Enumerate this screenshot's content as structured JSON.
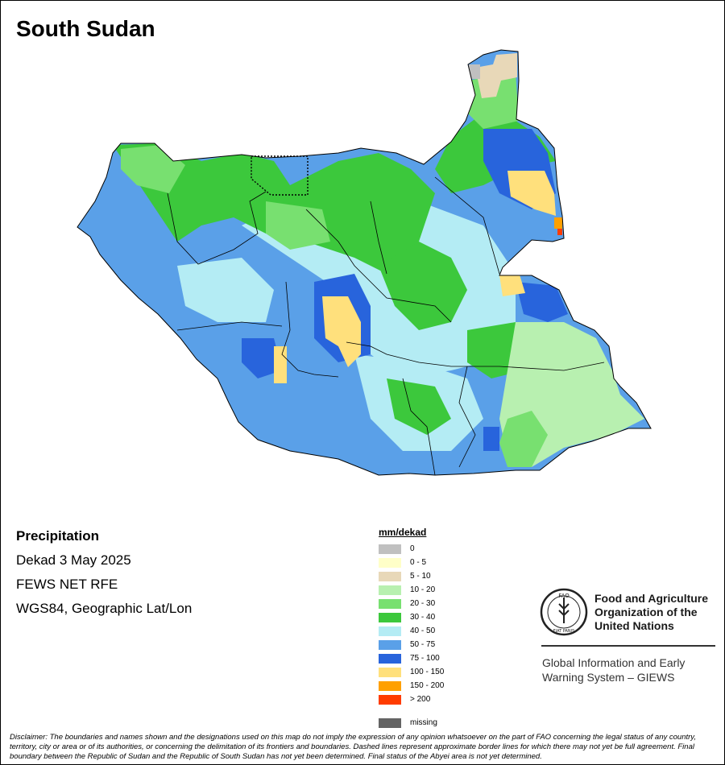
{
  "map": {
    "title": "South Sudan",
    "variable": "Precipitation",
    "period": "Dekad 3 May 2025",
    "source": "FEWS NET RFE",
    "projection": "WGS84, Geographic Lat/Lon"
  },
  "legend": {
    "title": "mm/dekad",
    "classes": [
      {
        "label": "0",
        "color": "#c0c0c0"
      },
      {
        "label": "0 - 5",
        "color": "#ffffc8"
      },
      {
        "label": "5 - 10",
        "color": "#e8d8b8"
      },
      {
        "label": "10 - 20",
        "color": "#b8f0b0"
      },
      {
        "label": "20 - 30",
        "color": "#78e070"
      },
      {
        "label": "30 - 40",
        "color": "#3cc83c"
      },
      {
        "label": "40 - 50",
        "color": "#b4ecf4"
      },
      {
        "label": "50 - 75",
        "color": "#5aa0e8"
      },
      {
        "label": "75 - 100",
        "color": "#2864dc"
      },
      {
        "label": "100 - 150",
        "color": "#ffe07c"
      },
      {
        "label": "150 - 200",
        "color": "#ffa000"
      },
      {
        "label": "> 200",
        "color": "#ff3c00"
      }
    ],
    "missing": {
      "label": "missing",
      "color": "#646464"
    }
  },
  "organization": {
    "logo_text": "FAO",
    "logo_motto": "FIAT PANIS",
    "name_lines": [
      "Food and Agriculture",
      "Organization of the",
      "United Nations"
    ],
    "system_lines": [
      "Global Information and Early",
      "Warning System – GIEWS"
    ]
  },
  "disclaimer": "Disclaimer: The boundaries and names shown and the designations used on this map do not imply the expression of any opinion whatsoever on the part of FAO concerning the legal status of any country, territory, city or area or of its authorities, or concerning the delimitation of its frontiers and boundaries. Dashed lines represent approximate border lines for which there may not yet be full agreement.  Final boundary between the Republic of Sudan and the Republic of South Sudan has not yet been determined. Final status of the Abyei area is not yet determined."
}
